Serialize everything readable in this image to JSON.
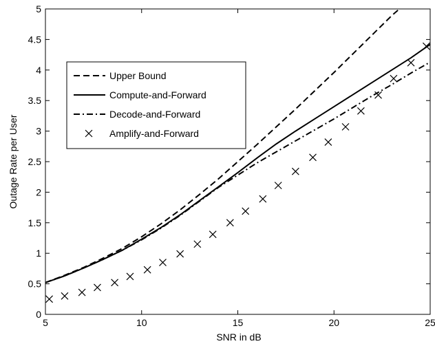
{
  "chart_data": {
    "type": "line",
    "title": "",
    "xlabel": "SNR in dB",
    "ylabel": "Outage Rate per User",
    "xlim": [
      5,
      25
    ],
    "ylim": [
      0,
      5
    ],
    "xticks": [
      5,
      10,
      15,
      20,
      25
    ],
    "yticks": [
      0,
      0.5,
      1,
      1.5,
      2,
      2.5,
      3,
      3.5,
      4,
      4.5,
      5
    ],
    "ytick_labels": [
      "0",
      "0.5",
      "1",
      "1.5",
      "2",
      "2.5",
      "3",
      "3.5",
      "4",
      "4.5",
      "5"
    ],
    "grid": false,
    "legend_position": "upper-left",
    "series": [
      {
        "name": "Upper Bound",
        "style": "dashed",
        "x": [
          5,
          6,
          7,
          8,
          9,
          10,
          11,
          12,
          13,
          14,
          15,
          16,
          17,
          18,
          19,
          20,
          21,
          22,
          23,
          23.4
        ],
        "y": [
          0.52,
          0.64,
          0.77,
          0.92,
          1.08,
          1.27,
          1.48,
          1.71,
          1.96,
          2.22,
          2.5,
          2.78,
          3.07,
          3.36,
          3.66,
          3.96,
          4.27,
          4.58,
          4.89,
          5.0
        ]
      },
      {
        "name": "Compute-and-Forward",
        "style": "solid",
        "x": [
          5,
          6,
          7,
          8,
          9,
          10,
          11,
          12,
          13,
          14,
          15,
          16,
          17,
          18,
          19,
          20,
          21,
          22,
          23,
          24,
          25
        ],
        "y": [
          0.52,
          0.63,
          0.76,
          0.9,
          1.05,
          1.23,
          1.42,
          1.63,
          1.86,
          2.09,
          2.32,
          2.56,
          2.79,
          3.0,
          3.2,
          3.4,
          3.6,
          3.8,
          4.0,
          4.2,
          4.42
        ]
      },
      {
        "name": "Decode-and-Forward",
        "style": "dashdot",
        "x": [
          5,
          6,
          7,
          8,
          9,
          10,
          11,
          12,
          13,
          14,
          15,
          16,
          17,
          18,
          19,
          20,
          21,
          22,
          23,
          24,
          25
        ],
        "y": [
          0.52,
          0.63,
          0.76,
          0.9,
          1.05,
          1.22,
          1.41,
          1.62,
          1.85,
          2.08,
          2.28,
          2.48,
          2.66,
          2.84,
          3.02,
          3.2,
          3.39,
          3.58,
          3.76,
          3.95,
          4.13
        ]
      },
      {
        "name": "Amplify-and-Forward",
        "style": "x-marker",
        "x": [
          5.2,
          6.0,
          6.9,
          7.7,
          8.6,
          9.4,
          10.3,
          11.1,
          12.0,
          12.9,
          13.7,
          14.6,
          15.4,
          16.3,
          17.1,
          18.0,
          18.9,
          19.7,
          20.6,
          21.4,
          22.3,
          23.1,
          24.0,
          24.8
        ],
        "y": [
          0.25,
          0.3,
          0.36,
          0.44,
          0.52,
          0.62,
          0.73,
          0.85,
          0.99,
          1.15,
          1.31,
          1.5,
          1.69,
          1.89,
          2.11,
          2.34,
          2.57,
          2.82,
          3.07,
          3.33,
          3.59,
          3.86,
          4.12,
          4.39
        ]
      }
    ]
  }
}
